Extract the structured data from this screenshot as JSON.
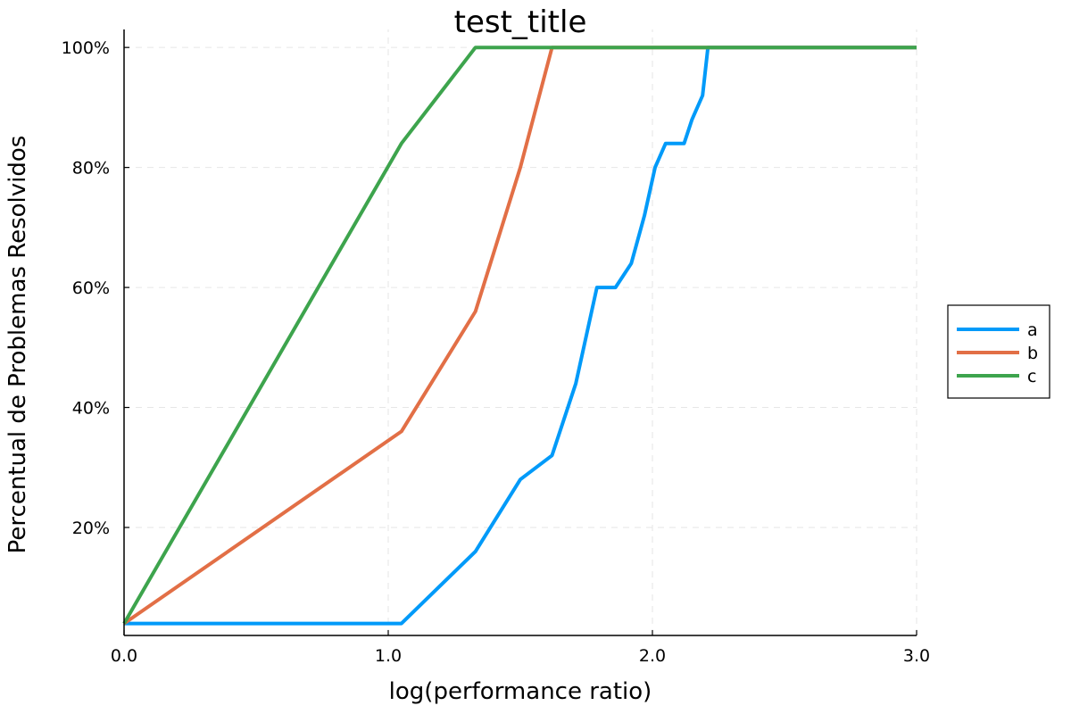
{
  "chart_data": {
    "type": "line",
    "title": "test_title",
    "xlabel": "log(performance ratio)",
    "ylabel": "Percentual de Problemas Resolvidos",
    "xlim": [
      0.0,
      3.0
    ],
    "ylim": [
      0.02,
      1.03
    ],
    "x_ticks": [
      0.0,
      1.0,
      2.0,
      3.0
    ],
    "x_tick_labels": [
      "0.0",
      "1.0",
      "2.0",
      "3.0"
    ],
    "y_ticks": [
      0.2,
      0.4,
      0.6,
      0.8,
      1.0
    ],
    "y_tick_labels": [
      "20%",
      "40%",
      "60%",
      "80%",
      "100%"
    ],
    "grid": true,
    "legend_position": "outer-right",
    "series": [
      {
        "name": "a",
        "color": "#009af9",
        "x": [
          0.0,
          1.05,
          1.33,
          1.5,
          1.62,
          1.71,
          1.79,
          1.86,
          1.92,
          1.97,
          2.01,
          2.05,
          2.12,
          2.15,
          2.19,
          2.21,
          3.0
        ],
        "y": [
          0.04,
          0.04,
          0.16,
          0.28,
          0.32,
          0.44,
          0.6,
          0.6,
          0.64,
          0.72,
          0.8,
          0.84,
          0.84,
          0.88,
          0.92,
          1.0,
          1.0
        ]
      },
      {
        "name": "b",
        "color": "#e26f46",
        "x": [
          0.0,
          1.05,
          1.33,
          1.5,
          1.62,
          3.0
        ],
        "y": [
          0.04,
          0.36,
          0.56,
          0.8,
          1.0,
          1.0
        ]
      },
      {
        "name": "c",
        "color": "#3da44d",
        "x": [
          0.0,
          1.05,
          1.33,
          3.0
        ],
        "y": [
          0.04,
          0.84,
          1.0,
          1.0
        ]
      }
    ]
  }
}
